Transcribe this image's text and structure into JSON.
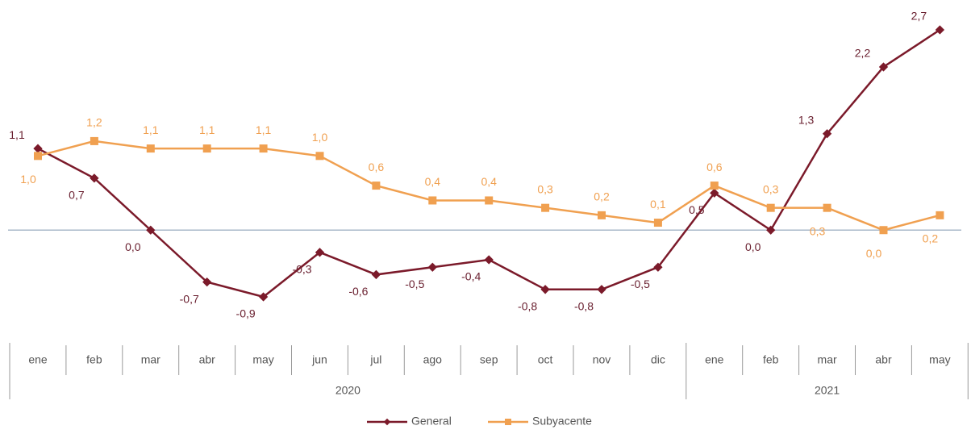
{
  "chart_data": {
    "type": "line",
    "groups": [
      {
        "name": "2020",
        "categories": [
          "ene",
          "feb",
          "mar",
          "abr",
          "may",
          "jun",
          "jul",
          "ago",
          "sep",
          "oct",
          "nov",
          "dic"
        ]
      },
      {
        "name": "2021",
        "categories": [
          "ene",
          "feb",
          "mar",
          "abr",
          "may"
        ]
      }
    ],
    "series": [
      {
        "name": "General",
        "color": "#7b1a2a",
        "values": [
          1.1,
          0.7,
          0.0,
          -0.7,
          -0.9,
          -0.3,
          -0.6,
          -0.5,
          -0.4,
          -0.8,
          -0.8,
          -0.5,
          0.5,
          0.0,
          1.3,
          2.2,
          2.7
        ],
        "value_labels": [
          "1,1",
          "0,7",
          "0,0",
          "-0,7",
          "-0,9",
          "-0,3",
          "-0,6",
          "-0,5",
          "-0,4",
          "-0,8",
          "-0,8",
          "-0,5",
          "0,5",
          "0,0",
          "1,3",
          "2,2",
          "2,7"
        ]
      },
      {
        "name": "Subyacente",
        "color": "#f0a050",
        "values": [
          1.0,
          1.2,
          1.1,
          1.1,
          1.1,
          1.0,
          0.6,
          0.4,
          0.4,
          0.3,
          0.2,
          0.1,
          0.6,
          0.3,
          0.3,
          0.0,
          0.2
        ],
        "value_labels": [
          "1,0",
          "1,2",
          "1,1",
          "1,1",
          "1,1",
          "1,0",
          "0,6",
          "0,4",
          "0,4",
          "0,3",
          "0,2",
          "0,1",
          "0,6",
          "0,3",
          "0,3",
          "0,0",
          "0,2"
        ]
      }
    ]
  }
}
